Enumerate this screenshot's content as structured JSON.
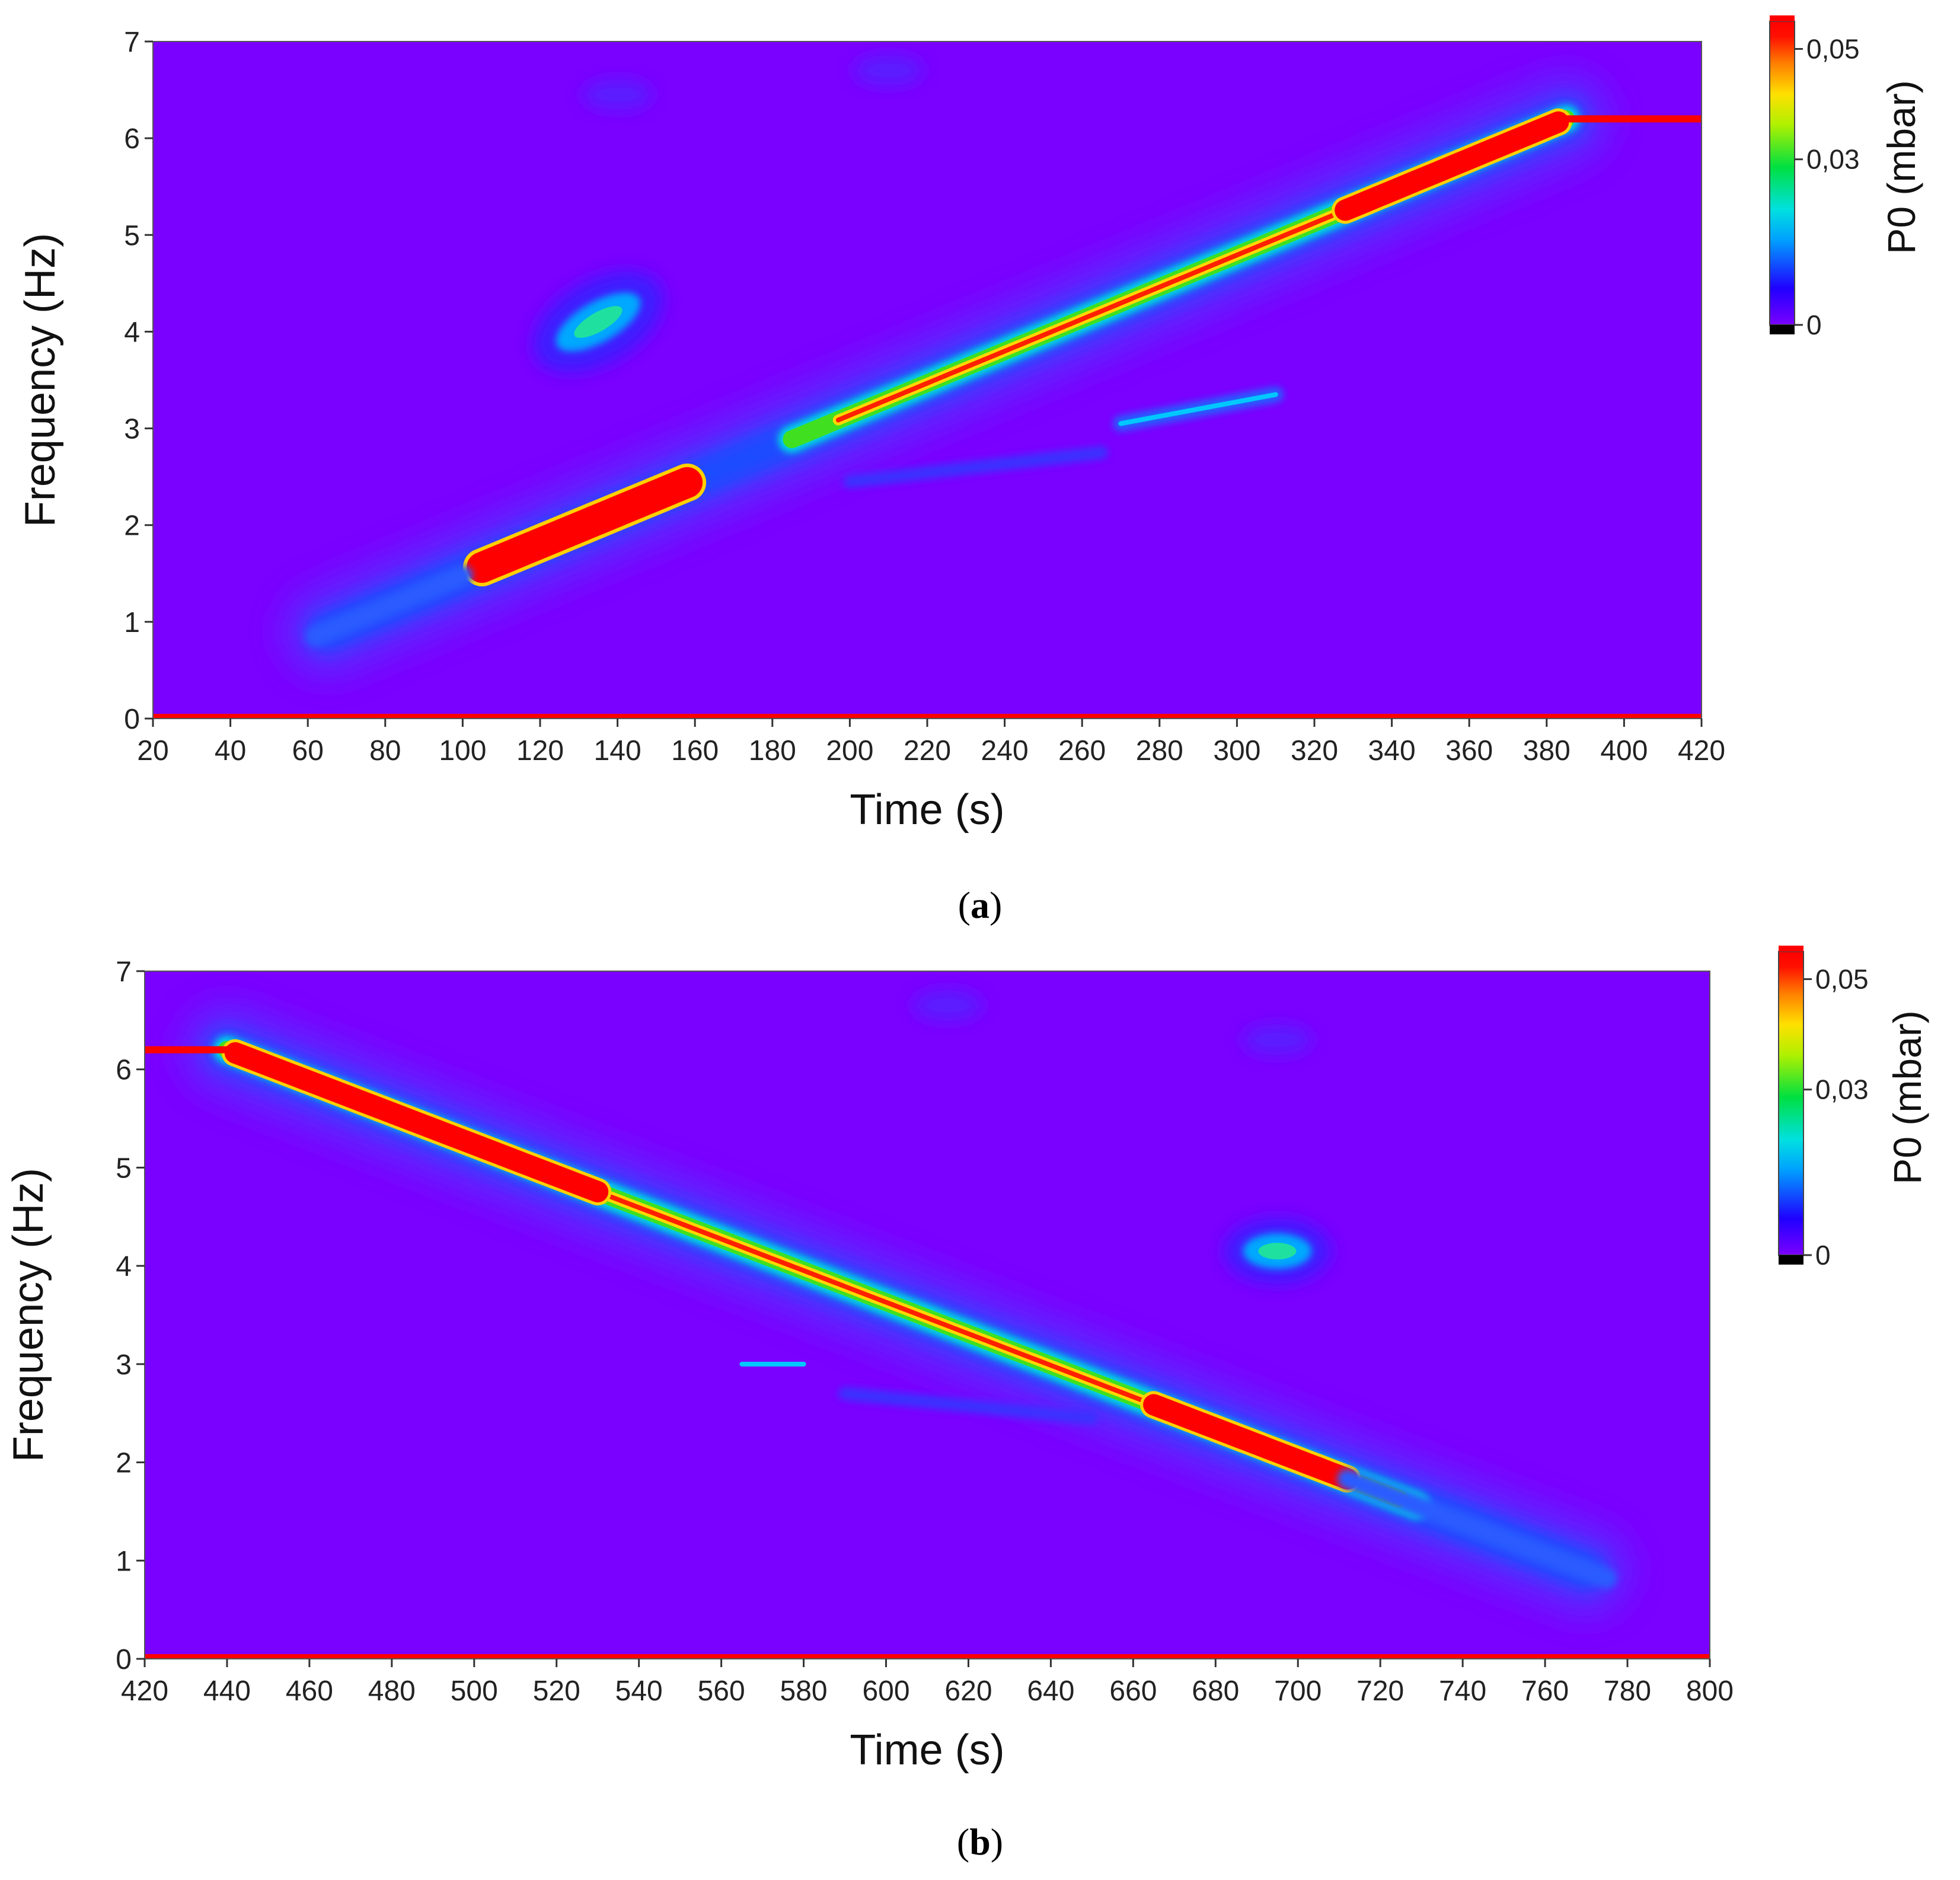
{
  "chart_data": [
    {
      "type": "heatmap",
      "panel_label": "a",
      "xlabel": "Time (s)",
      "ylabel": "Frequency (Hz)",
      "colorbar_label": "P0 (mbar)",
      "xlim": [
        20,
        420
      ],
      "ylim": [
        0,
        7
      ],
      "x_ticks": [
        "20",
        "40",
        "60",
        "80",
        "100",
        "120",
        "140",
        "160",
        "180",
        "200",
        "220",
        "240",
        "260",
        "280",
        "300",
        "320",
        "340",
        "360",
        "380",
        "400",
        "420"
      ],
      "y_ticks": [
        "0",
        "1",
        "2",
        "3",
        "4",
        "5",
        "6",
        "7"
      ],
      "colorbar_range": [
        0,
        0.055
      ],
      "colorbar_ticks": [
        {
          "value": 0.05,
          "label": "0,05"
        },
        {
          "value": 0.03,
          "label": "0,03"
        },
        {
          "value": 0,
          "label": "0"
        }
      ],
      "background_color": "#7a00ff",
      "features": [
        {
          "name": "main sweep ridge",
          "from": [
            65,
            0.9
          ],
          "to": [
            385,
            6.2
          ],
          "peak": "red 100-160 s and 330-385 s"
        },
        {
          "name": "high-frequency line",
          "from": [
            385,
            6.2
          ],
          "to": [
            420,
            6.2
          ],
          "level": 0.05
        },
        {
          "name": "zero-frequency line",
          "from": [
            20,
            0
          ],
          "to": [
            420,
            0
          ],
          "level": 0.05
        },
        {
          "name": "blob",
          "time": 135,
          "freq": 4.1,
          "level": 0.025
        },
        {
          "name": "secondary ridge",
          "from": [
            270,
            3.05
          ],
          "to": [
            310,
            3.35
          ],
          "level": 0.02
        },
        {
          "name": "faint ridge",
          "from": [
            200,
            2.45
          ],
          "to": [
            265,
            2.75
          ],
          "level": 0.01
        }
      ]
    },
    {
      "type": "heatmap",
      "panel_label": "b",
      "xlabel": "Time (s)",
      "ylabel": "Frequency (Hz)",
      "colorbar_label": "P0 (mbar)",
      "xlim": [
        420,
        800
      ],
      "ylim": [
        0,
        7
      ],
      "x_ticks": [
        "420",
        "440",
        "460",
        "480",
        "500",
        "520",
        "540",
        "560",
        "580",
        "600",
        "620",
        "640",
        "660",
        "680",
        "700",
        "720",
        "740",
        "760",
        "780",
        "800"
      ],
      "y_ticks": [
        "0",
        "1",
        "2",
        "3",
        "4",
        "5",
        "6",
        "7"
      ],
      "colorbar_range": [
        0,
        0.055
      ],
      "colorbar_ticks": [
        {
          "value": 0.05,
          "label": "0,05"
        },
        {
          "value": 0.03,
          "label": "0,03"
        },
        {
          "value": 0,
          "label": "0"
        }
      ],
      "background_color": "#7a00ff",
      "features": [
        {
          "name": "main sweep ridge",
          "from": [
            440,
            6.2
          ],
          "to": [
            770,
            0.9
          ],
          "peak": "red 440-530 s and 665-710 s"
        },
        {
          "name": "high-frequency line",
          "from": [
            420,
            6.2
          ],
          "to": [
            440,
            6.2
          ],
          "level": 0.05
        },
        {
          "name": "zero-frequency line",
          "from": [
            420,
            0
          ],
          "to": [
            800,
            0
          ],
          "level": 0.05
        },
        {
          "name": "blob",
          "time": 695,
          "freq": 4.15,
          "level": 0.025
        },
        {
          "name": "secondary ridge",
          "from": [
            565,
            3.0
          ],
          "to": [
            580,
            3.0
          ],
          "level": 0.02
        },
        {
          "name": "faint ridge",
          "from": [
            590,
            2.7
          ],
          "to": [
            650,
            2.45
          ],
          "level": 0.01
        }
      ]
    }
  ]
}
